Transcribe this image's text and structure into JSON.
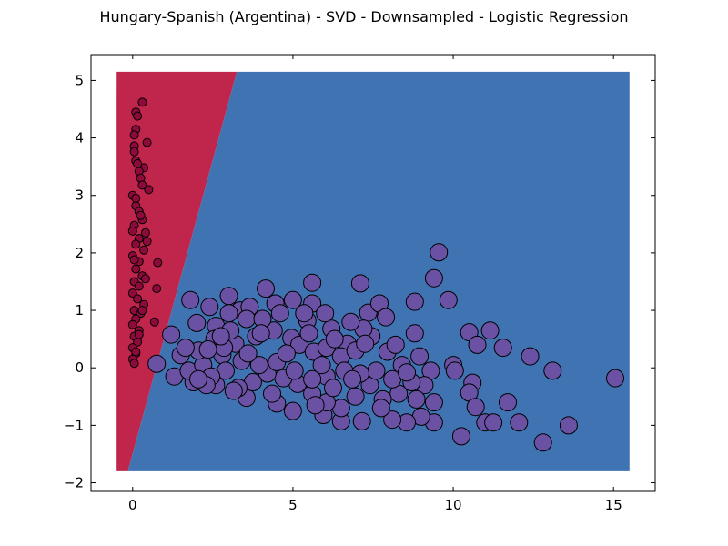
{
  "chart_data": {
    "type": "scatter",
    "title": "Hungary-Spanish (Argentina) - SVD - Downsampled - Logistic Regression",
    "xlabel": "",
    "ylabel": "",
    "xlim": [
      -1.3,
      16.3
    ],
    "ylim": [
      -2.15,
      5.45
    ],
    "x_ticks": [
      0,
      5,
      10,
      15
    ],
    "y_ticks": [
      -2,
      -1,
      0,
      1,
      2,
      3,
      4,
      5
    ],
    "grid": false,
    "legend": "none",
    "decision_regions": {
      "extent": {
        "x": [
          -0.5,
          15.5
        ],
        "y": [
          -1.8,
          5.15
        ]
      },
      "boundary": [
        [
          -0.15,
          -1.8
        ],
        [
          3.25,
          5.15
        ]
      ],
      "class_0_color": "#c0264b",
      "class_1_color": "#4073b2"
    },
    "series": [
      {
        "class": 0,
        "color": "#8e0a3a",
        "marker_size": "small",
        "points": [
          [
            0.3,
            4.62
          ],
          [
            0.1,
            4.45
          ],
          [
            0.15,
            4.38
          ],
          [
            0.45,
            3.92
          ],
          [
            0.05,
            3.86
          ],
          [
            0.05,
            3.76
          ],
          [
            0.1,
            4.15
          ],
          [
            0.05,
            4.05
          ],
          [
            0.35,
            3.48
          ],
          [
            0.2,
            3.42
          ],
          [
            0.25,
            3.3
          ],
          [
            0.5,
            3.1
          ],
          [
            0.0,
            3.0
          ],
          [
            0.1,
            2.82
          ],
          [
            0.2,
            2.72
          ],
          [
            0.3,
            2.58
          ],
          [
            0.05,
            2.48
          ],
          [
            0.4,
            2.35
          ],
          [
            0.2,
            2.25
          ],
          [
            0.1,
            2.15
          ],
          [
            0.35,
            2.05
          ],
          [
            0.0,
            1.95
          ],
          [
            0.2,
            1.85
          ],
          [
            0.78,
            1.83
          ],
          [
            0.1,
            1.72
          ],
          [
            0.3,
            1.6
          ],
          [
            0.05,
            1.5
          ],
          [
            0.2,
            1.42
          ],
          [
            0.75,
            1.38
          ],
          [
            0.0,
            1.3
          ],
          [
            0.15,
            1.2
          ],
          [
            0.35,
            1.1
          ],
          [
            0.05,
            1.0
          ],
          [
            0.25,
            0.95
          ],
          [
            0.1,
            0.85
          ],
          [
            0.68,
            0.8
          ],
          [
            0.0,
            0.75
          ],
          [
            0.2,
            0.65
          ],
          [
            0.05,
            0.55
          ],
          [
            0.15,
            0.45
          ],
          [
            0.0,
            0.35
          ],
          [
            0.1,
            0.25
          ],
          [
            0.0,
            0.15
          ],
          [
            0.05,
            0.08
          ],
          [
            0.1,
            3.6
          ],
          [
            0.3,
            3.18
          ],
          [
            0.0,
            2.38
          ],
          [
            0.45,
            2.2
          ],
          [
            0.3,
            1.0
          ],
          [
            0.1,
            2.95
          ],
          [
            0.25,
            2.65
          ],
          [
            0.4,
            1.55
          ],
          [
            0.05,
            1.88
          ],
          [
            0.2,
            0.58
          ],
          [
            0.1,
            0.28
          ],
          [
            0.15,
            3.55
          ]
        ]
      },
      {
        "class": 1,
        "color": "#6a51a3",
        "marker_size": "large",
        "points": [
          [
            0.75,
            0.07
          ],
          [
            1.2,
            0.58
          ],
          [
            1.5,
            0.22
          ],
          [
            1.8,
            1.18
          ],
          [
            2.0,
            0.78
          ],
          [
            2.4,
            1.06
          ],
          [
            2.6,
            0.73
          ],
          [
            3.0,
            1.25
          ],
          [
            3.35,
            1.0
          ],
          [
            3.65,
            1.06
          ],
          [
            4.15,
            1.38
          ],
          [
            4.45,
            1.12
          ],
          [
            5.0,
            1.18
          ],
          [
            5.45,
            0.82
          ],
          [
            5.6,
            1.48
          ],
          [
            5.6,
            1.12
          ],
          [
            6.2,
            0.68
          ],
          [
            6.7,
            0.42
          ],
          [
            7.1,
            1.47
          ],
          [
            7.35,
            0.96
          ],
          [
            7.7,
            1.12
          ],
          [
            7.9,
            0.88
          ],
          [
            8.8,
            1.15
          ],
          [
            8.8,
            0.6
          ],
          [
            9.4,
            1.56
          ],
          [
            9.55,
            2.01
          ],
          [
            9.85,
            1.18
          ],
          [
            10.5,
            0.62
          ],
          [
            10.75,
            0.4
          ],
          [
            11.15,
            0.65
          ],
          [
            11.55,
            0.35
          ],
          [
            12.4,
            0.2
          ],
          [
            13.1,
            -0.05
          ],
          [
            15.05,
            -0.18
          ],
          [
            10.0,
            0.05
          ],
          [
            10.05,
            -0.05
          ],
          [
            10.6,
            -0.26
          ],
          [
            10.5,
            -0.43
          ],
          [
            10.7,
            -0.68
          ],
          [
            11.7,
            -0.6
          ],
          [
            11.0,
            -0.95
          ],
          [
            11.25,
            -0.95
          ],
          [
            12.05,
            -0.95
          ],
          [
            13.6,
            -1.0
          ],
          [
            12.8,
            -1.3
          ],
          [
            10.25,
            -1.19
          ],
          [
            9.4,
            -0.95
          ],
          [
            9.0,
            -0.85
          ],
          [
            8.55,
            -0.95
          ],
          [
            8.1,
            -0.9
          ],
          [
            7.15,
            -0.93
          ],
          [
            6.5,
            -0.93
          ],
          [
            5.95,
            -0.82
          ],
          [
            5.0,
            -0.75
          ],
          [
            4.5,
            -0.62
          ],
          [
            3.55,
            -0.52
          ],
          [
            2.6,
            -0.3
          ],
          [
            1.9,
            -0.25
          ],
          [
            1.3,
            -0.15
          ],
          [
            1.75,
            -0.05
          ],
          [
            2.2,
            0.05
          ],
          [
            2.8,
            0.22
          ],
          [
            3.2,
            0.42
          ],
          [
            3.85,
            0.55
          ],
          [
            4.4,
            0.65
          ],
          [
            4.95,
            0.52
          ],
          [
            5.2,
            0.4
          ],
          [
            5.65,
            0.28
          ],
          [
            6.05,
            0.35
          ],
          [
            6.5,
            0.2
          ],
          [
            6.95,
            0.3
          ],
          [
            7.45,
            0.55
          ],
          [
            7.95,
            0.28
          ],
          [
            8.4,
            0.05
          ],
          [
            8.95,
            0.2
          ],
          [
            9.3,
            -0.05
          ],
          [
            9.1,
            -0.3
          ],
          [
            8.7,
            -0.25
          ],
          [
            8.3,
            -0.45
          ],
          [
            7.8,
            -0.55
          ],
          [
            7.4,
            -0.3
          ],
          [
            6.95,
            -0.5
          ],
          [
            6.5,
            -0.7
          ],
          [
            6.05,
            -0.6
          ],
          [
            5.6,
            -0.45
          ],
          [
            5.15,
            -0.28
          ],
          [
            4.7,
            -0.18
          ],
          [
            4.2,
            -0.1
          ],
          [
            3.75,
            -0.25
          ],
          [
            3.3,
            -0.35
          ],
          [
            2.9,
            -0.05
          ],
          [
            2.45,
            -0.15
          ],
          [
            2.05,
            0.3
          ],
          [
            2.55,
            0.5
          ],
          [
            3.05,
            0.65
          ],
          [
            3.55,
            0.85
          ],
          [
            4.05,
            0.85
          ],
          [
            4.6,
            0.95
          ],
          [
            5.5,
            0.6
          ],
          [
            6.3,
            0.5
          ],
          [
            7.2,
            0.68
          ],
          [
            7.25,
            0.42
          ],
          [
            8.2,
            0.4
          ],
          [
            8.1,
            -0.2
          ],
          [
            7.6,
            -0.05
          ],
          [
            7.1,
            -0.1
          ],
          [
            6.6,
            -0.05
          ],
          [
            6.05,
            -0.15
          ],
          [
            5.6,
            -0.2
          ],
          [
            5.05,
            -0.05
          ],
          [
            4.5,
            0.1
          ],
          [
            3.95,
            0.05
          ],
          [
            3.4,
            0.12
          ],
          [
            2.85,
            0.35
          ],
          [
            2.3,
            -0.3
          ],
          [
            2.05,
            -0.2
          ],
          [
            3.15,
            -0.4
          ],
          [
            4.35,
            -0.45
          ],
          [
            5.7,
            -0.65
          ],
          [
            6.25,
            -0.35
          ],
          [
            6.85,
            -0.2
          ],
          [
            7.75,
            -0.7
          ],
          [
            8.85,
            -0.55
          ],
          [
            9.4,
            -0.6
          ],
          [
            1.65,
            0.35
          ],
          [
            2.35,
            0.32
          ],
          [
            3.6,
            0.25
          ],
          [
            4.8,
            0.25
          ],
          [
            5.9,
            0.05
          ],
          [
            8.55,
            -0.08
          ],
          [
            4.0,
            0.6
          ],
          [
            5.35,
            0.95
          ],
          [
            6.0,
            0.95
          ],
          [
            6.8,
            0.8
          ],
          [
            3.0,
            0.95
          ],
          [
            2.75,
            0.55
          ]
        ]
      }
    ]
  }
}
